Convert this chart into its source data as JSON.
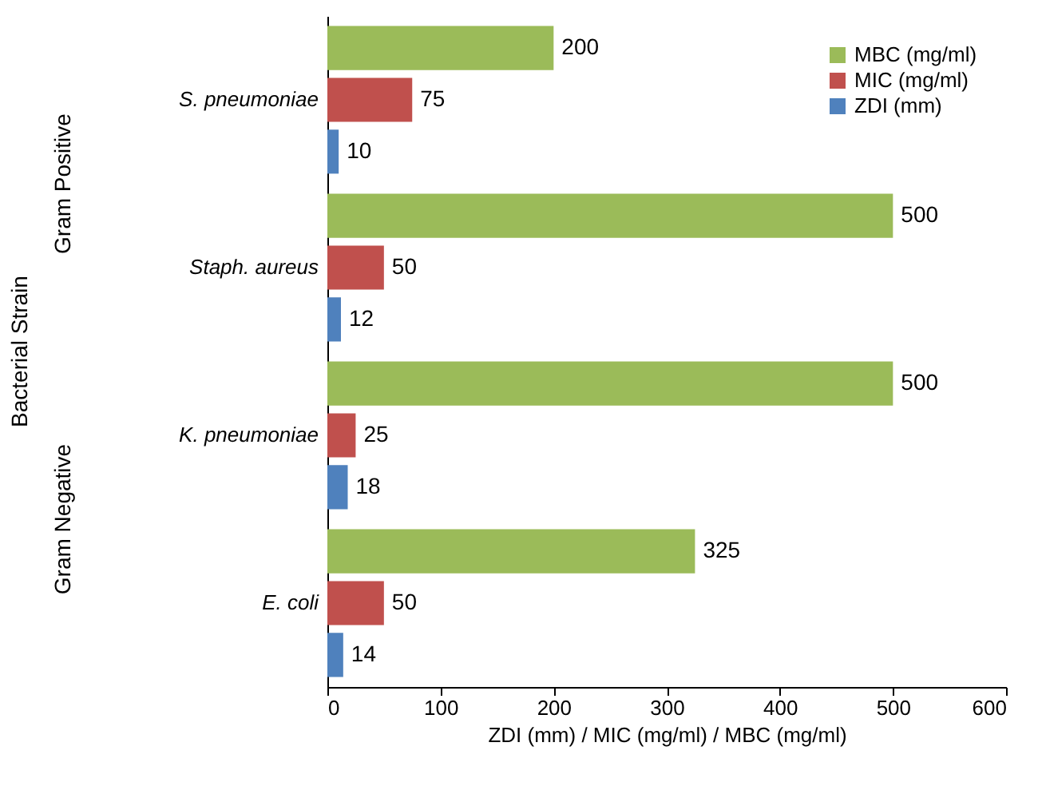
{
  "chart_data": {
    "type": "bar",
    "orientation": "horizontal",
    "xlabel": "ZDI (mm) / MIC (mg/ml) / MBC (mg/ml)",
    "categories": [
      "S. pneumoniae",
      "Staph. aureus",
      "K. pneumoniae",
      "E. coli"
    ],
    "series": [
      {
        "name": "MBC (mg/ml)",
        "color": "#9bbb59",
        "values": [
          200,
          500,
          500,
          325
        ]
      },
      {
        "name": "MIC (mg/ml)",
        "color": "#c0504d",
        "values": [
          75,
          50,
          25,
          50
        ]
      },
      {
        "name": "ZDI (mm)",
        "color": "#4f81bd",
        "values": [
          10,
          12,
          18,
          14
        ]
      }
    ],
    "annotations": [
      "Bacterial Strain",
      "Gram Positive",
      "Gram Negative"
    ],
    "xlim": [
      0,
      600
    ],
    "xticks": [
      0,
      100,
      200,
      300,
      400,
      500,
      600
    ],
    "data_labels": true,
    "grid": false,
    "legend": "top right"
  }
}
